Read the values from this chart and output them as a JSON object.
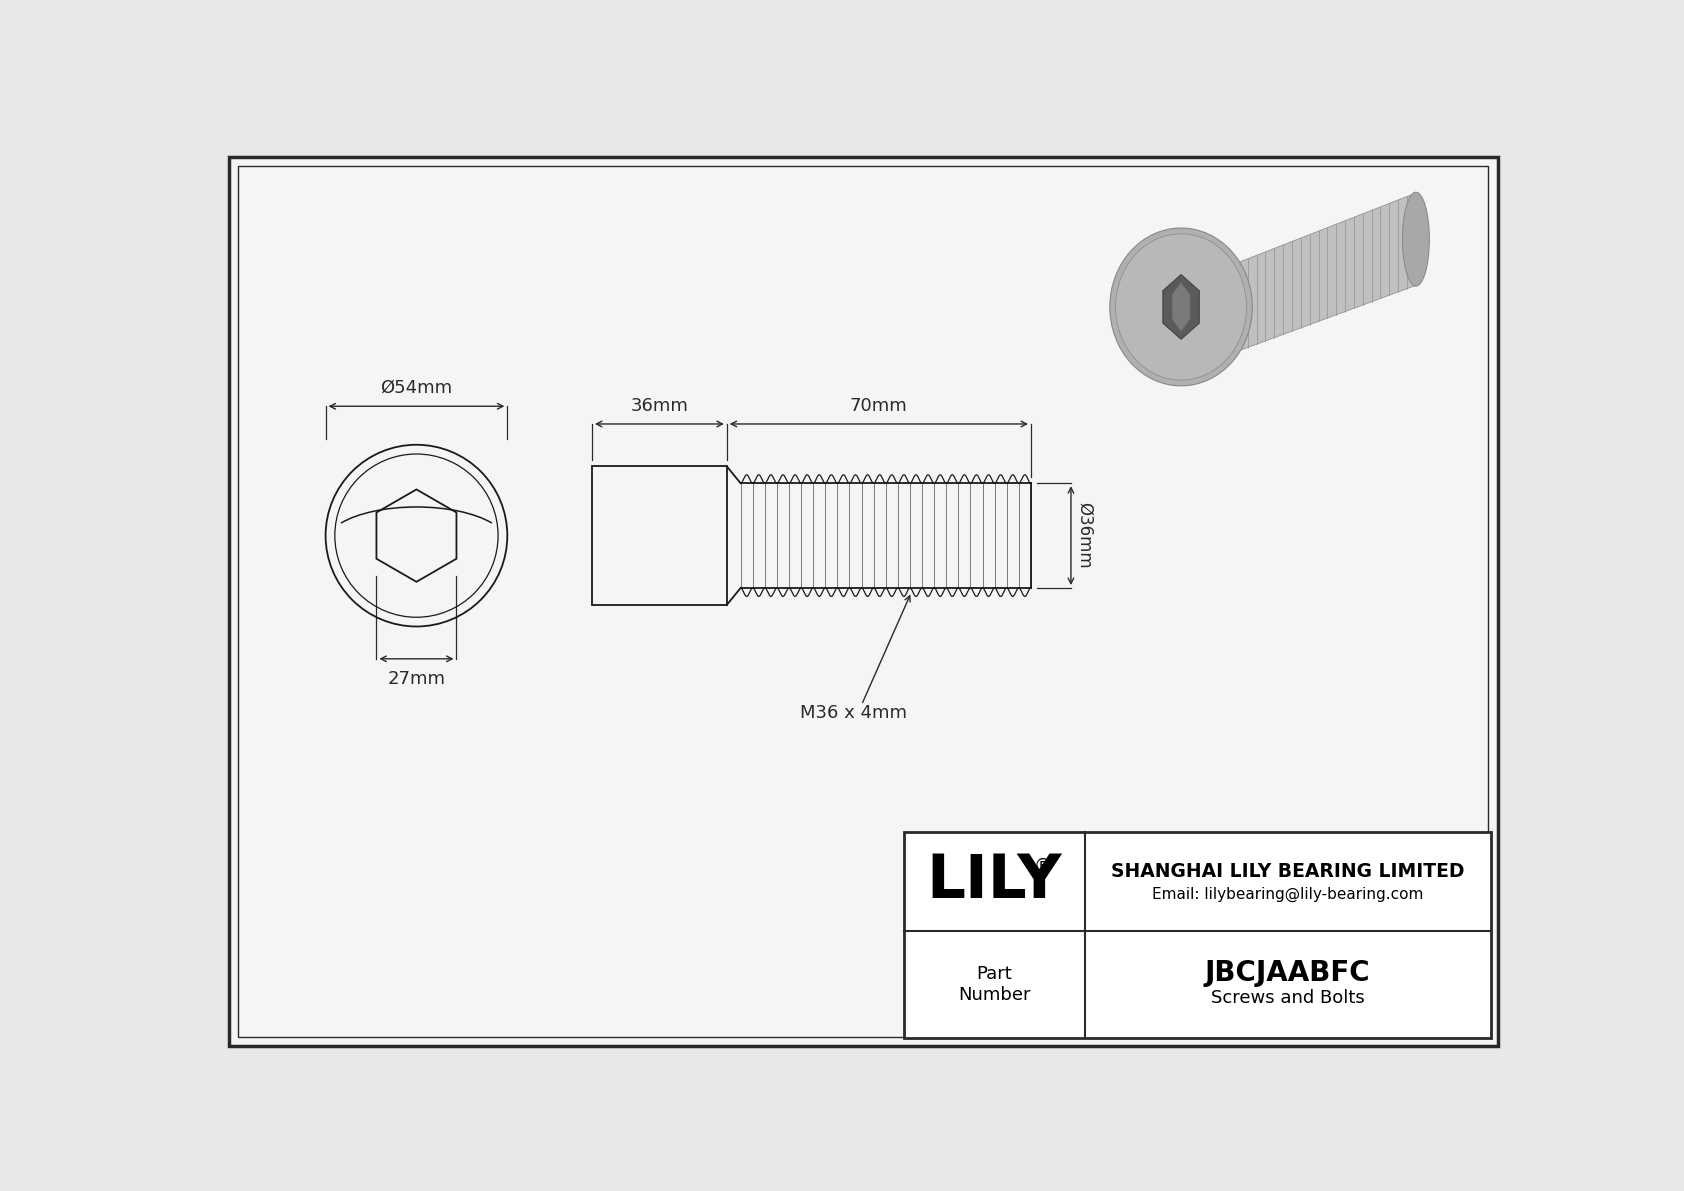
{
  "bg_color": "#e8e8e8",
  "drawing_bg": "#f5f5f5",
  "line_color": "#1a1a1a",
  "dim_color": "#2a2a2a",
  "border_color": "#2a2a2a",
  "title": "JBCJAABFC",
  "subtitle": "Screws and Bolts",
  "company": "SHANGHAI LILY BEARING LIMITED",
  "email": "Email: lilybearing@lily-bearing.com",
  "part_number_label": "Part\nNumber",
  "logo": "LILY",
  "logo_super": "®",
  "dim_head_diameter": "Ø54mm",
  "dim_head_length": "36mm",
  "dim_thread_length": "70mm",
  "dim_thread_diameter": "Ø36mm",
  "dim_hex_key": "27mm",
  "thread_label": "M36 x 4mm"
}
